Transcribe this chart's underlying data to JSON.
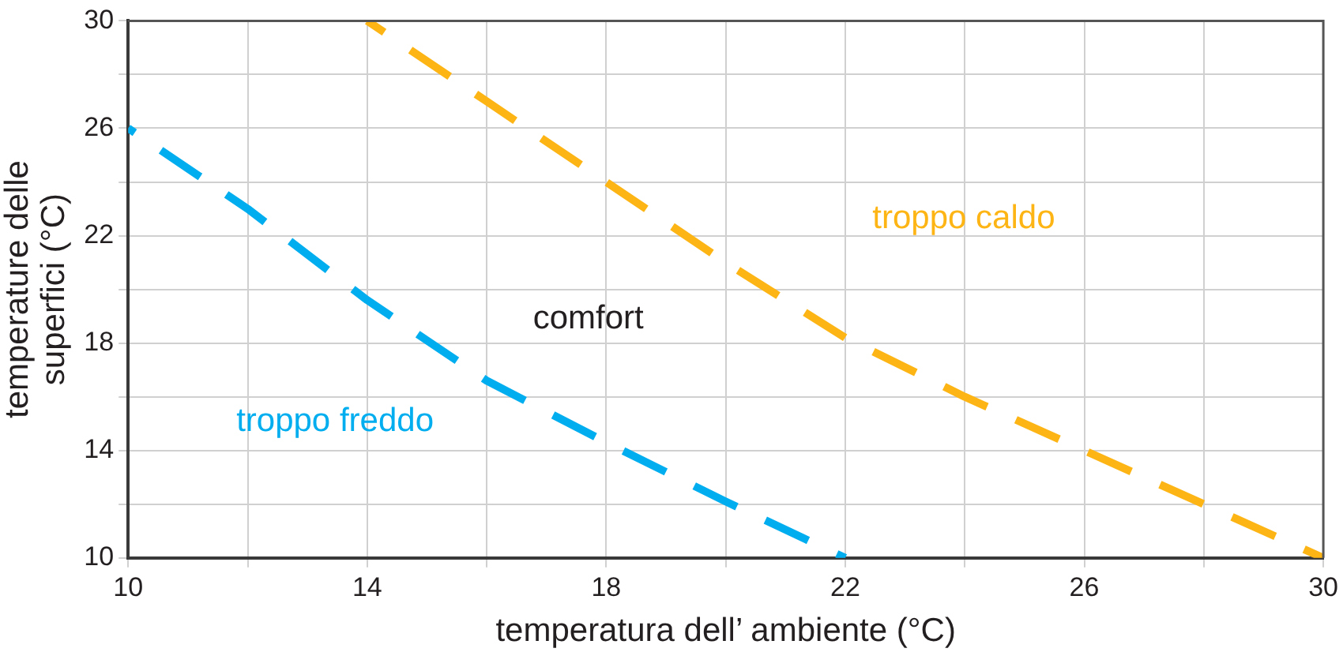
{
  "chart_data": {
    "type": "line",
    "xlabel": "temperatura dell’ ambiente (°C)",
    "ylabel": "temperature delle superfici (°C)",
    "xlim": [
      10,
      30
    ],
    "xticks": [
      10,
      {
        "value": 12,
        "label": null
      },
      14,
      {
        "value": 16,
        "label": null
      },
      18,
      {
        "value": 20,
        "label": null
      },
      22,
      {
        "value": 24,
        "label": null
      },
      26,
      {
        "value": 28,
        "label": null
      },
      30
    ],
    "ylim": [
      10,
      30
    ],
    "yticks": [
      10,
      {
        "value": 12,
        "label": null
      },
      14,
      {
        "value": 16,
        "label": null
      },
      18,
      {
        "value": 20,
        "label": null
      },
      22,
      {
        "value": 24,
        "label": null
      },
      26,
      {
        "value": 28,
        "label": null
      },
      30
    ],
    "grid": true,
    "legend": false,
    "marker": "none",
    "line_style": "dashed",
    "series": [
      {
        "name": "troppo freddo",
        "color": "#00aeef",
        "x": [
          10,
          12,
          14,
          16,
          18,
          20,
          22
        ],
        "values": [
          26,
          23,
          19.6,
          16.6,
          14.3,
          12.1,
          10
        ]
      },
      {
        "name": "troppo caldo",
        "color": "#fdb515",
        "x": [
          14,
          16,
          18,
          20,
          22,
          24,
          26,
          28,
          30
        ],
        "values": [
          30,
          27,
          24,
          21,
          18.2,
          16,
          14,
          12,
          10
        ]
      }
    ],
    "annotations": [
      "comfort"
    ]
  }
}
